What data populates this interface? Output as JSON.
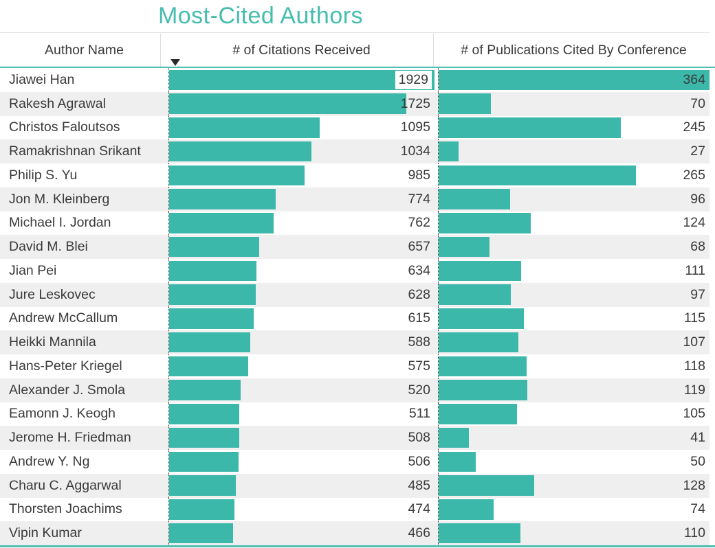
{
  "title": "Most-Cited Authors",
  "colors": {
    "bar_color": "#3bb8a9",
    "title_color": "#44bdae",
    "accent_line": "#4fbfb2",
    "row_alt": "#efefef",
    "text_color": "#3a3a3a",
    "header_text": "#3b3a39"
  },
  "table": {
    "columns": [
      {
        "label": "Author Name",
        "overlap_label": ""
      },
      {
        "label": "# of Citations Received",
        "sort": "descending",
        "overlap_label": "chip"
      },
      {
        "label": "# of Publications Cited By Conference",
        "sort": "",
        "overlap_label": "on-bar"
      }
    ]
  },
  "chart_data": {
    "type": "bar",
    "layout": "table-with-data-bars",
    "title": "Most-Cited Authors",
    "sort": {
      "by": "# of Citations Received",
      "order": "descending"
    },
    "categories": [
      "Jiawei Han",
      "Rakesh Agrawal",
      "Christos Faloutsos",
      "Ramakrishnan Srikant",
      "Philip S. Yu",
      "Jon M. Kleinberg",
      "Michael I. Jordan",
      "David M. Blei",
      "Jian Pei",
      "Jure Leskovec",
      "Andrew McCallum",
      "Heikki Mannila",
      "Hans-Peter Kriegel",
      "Alexander J. Smola",
      "Eamonn J. Keogh",
      "Jerome H. Friedman",
      "Andrew Y. Ng",
      "Charu C. Aggarwal",
      "Thorsten Joachims",
      "Vipin Kumar"
    ],
    "series": [
      {
        "name": "# of Citations Received",
        "axis_max": 1929,
        "values": [
          1929,
          1725,
          1095,
          1034,
          985,
          774,
          762,
          657,
          634,
          628,
          615,
          588,
          575,
          520,
          511,
          508,
          506,
          485,
          474,
          466
        ]
      },
      {
        "name": "# of Publications Cited By Conference",
        "axis_max": 364,
        "values": [
          364,
          70,
          245,
          27,
          265,
          96,
          124,
          68,
          111,
          97,
          115,
          107,
          118,
          119,
          105,
          41,
          50,
          128,
          74,
          110
        ]
      }
    ]
  }
}
